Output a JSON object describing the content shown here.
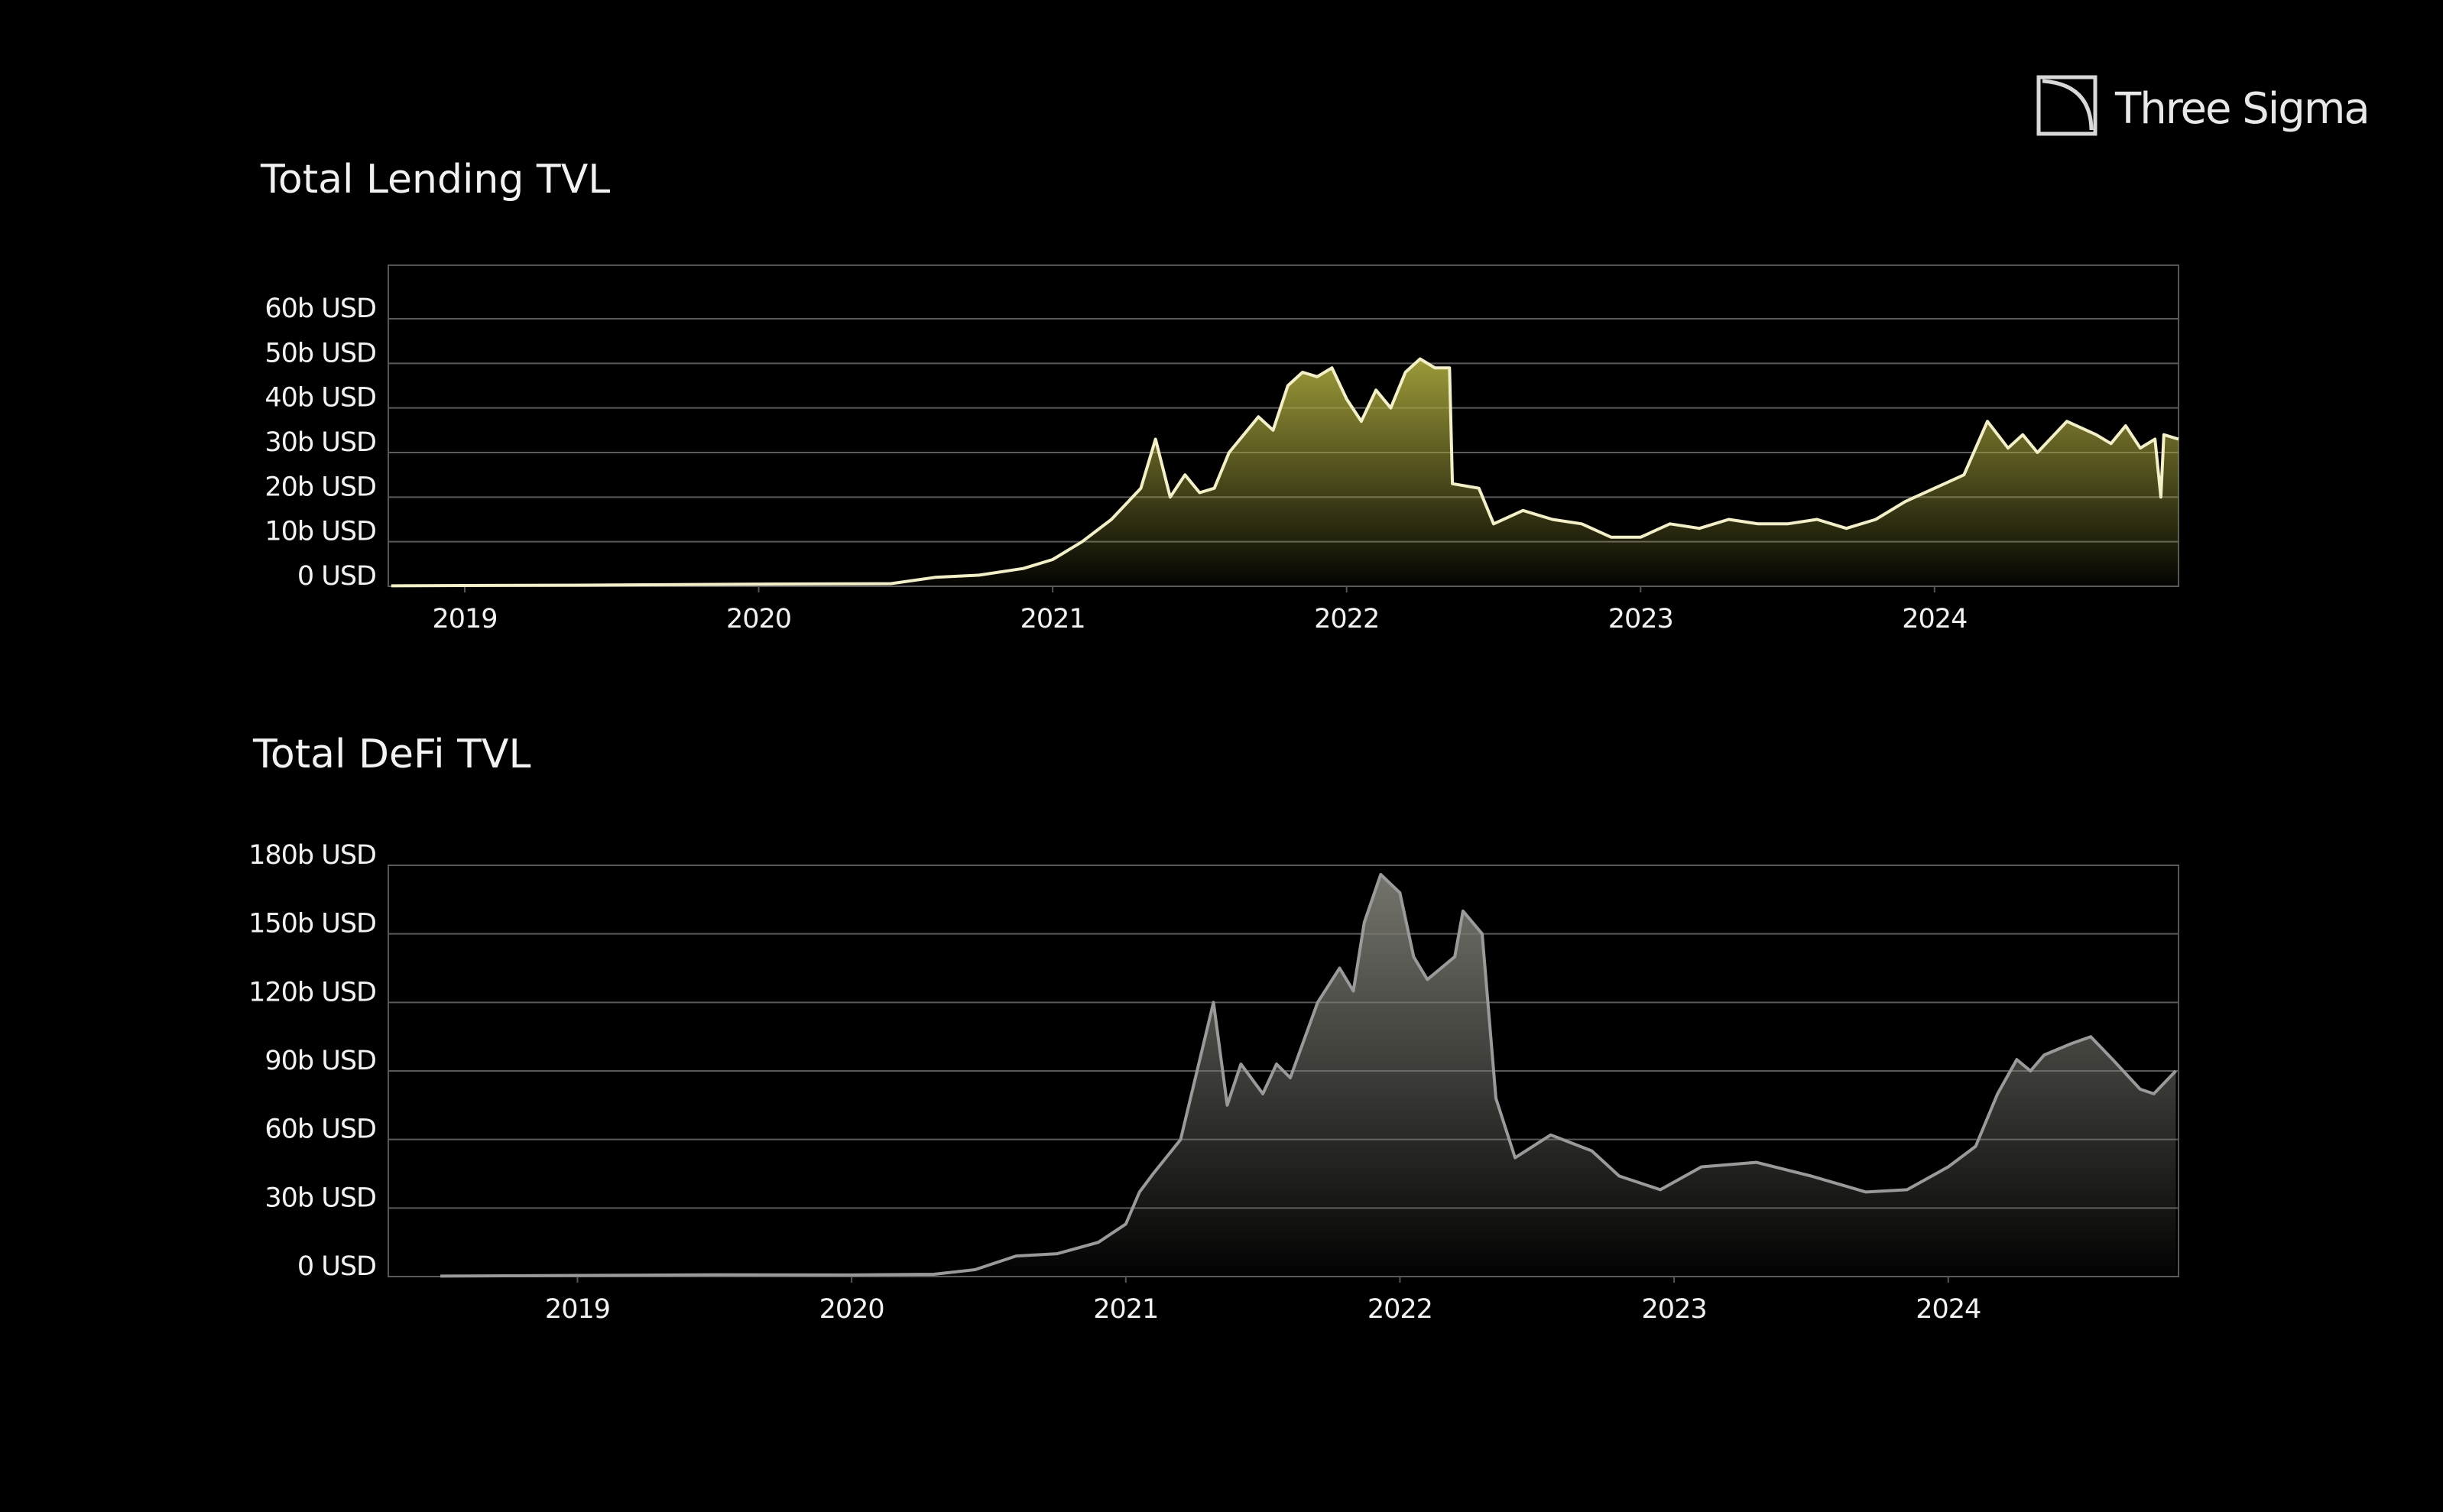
{
  "logo": "Three Sigma",
  "chart_data": [
    {
      "type": "area",
      "title": "Total Lending TVL",
      "color": "#f3efc8",
      "fill_color": "#a4a23c",
      "x": [
        2018.75,
        2019.5,
        2020.0,
        2020.45,
        2020.6,
        2020.75,
        2020.9,
        2021.0,
        2021.1,
        2021.2,
        2021.3,
        2021.35,
        2021.4,
        2021.45,
        2021.5,
        2021.55,
        2021.6,
        2021.7,
        2021.75,
        2021.8,
        2021.85,
        2021.9,
        2021.95,
        2022.0,
        2022.05,
        2022.1,
        2022.15,
        2022.2,
        2022.25,
        2022.3,
        2022.35,
        2022.36,
        2022.45,
        2022.5,
        2022.6,
        2022.7,
        2022.8,
        2022.9,
        2023.0,
        2023.1,
        2023.2,
        2023.3,
        2023.4,
        2023.5,
        2023.6,
        2023.7,
        2023.8,
        2023.9,
        2024.0,
        2024.1,
        2024.18,
        2024.25,
        2024.3,
        2024.35,
        2024.45,
        2024.55,
        2024.6,
        2024.65,
        2024.7,
        2024.75,
        2024.77,
        2024.78,
        2024.83
      ],
      "values": [
        0.1,
        0.3,
        0.5,
        0.6,
        2,
        2.5,
        4,
        6,
        10,
        15,
        22,
        33,
        20,
        25,
        21,
        22,
        30,
        38,
        35,
        45,
        48,
        47,
        49,
        42,
        37,
        44,
        40,
        48,
        51,
        49,
        49,
        23,
        22,
        14,
        17,
        15,
        14,
        11,
        11,
        14,
        13,
        15,
        14,
        14,
        15,
        13,
        15,
        19,
        22,
        25,
        37,
        31,
        34,
        30,
        37,
        34,
        32,
        36,
        31,
        33,
        20,
        34,
        33
      ],
      "xlim": [
        2018.74,
        2024.83
      ],
      "xticks": [
        2019,
        2020,
        2021,
        2022,
        2023,
        2024
      ],
      "ylim": [
        0,
        72
      ],
      "yticks": [
        {
          "value": 0,
          "label": "0 USD"
        },
        {
          "value": 10,
          "label": "10b USD"
        },
        {
          "value": 20,
          "label": "20b USD"
        },
        {
          "value": 30,
          "label": "30b USD"
        },
        {
          "value": 40,
          "label": "40b USD"
        },
        {
          "value": 50,
          "label": "50b USD"
        },
        {
          "value": 60,
          "label": "60b USD"
        }
      ],
      "grid": true
    },
    {
      "type": "area",
      "title": "Total DeFi TVL",
      "color": "#9a9a9a",
      "fill_color": "#7a7a72",
      "x": [
        2018.5,
        2019.0,
        2019.5,
        2020.0,
        2020.3,
        2020.45,
        2020.6,
        2020.75,
        2020.9,
        2021.0,
        2021.05,
        2021.1,
        2021.2,
        2021.28,
        2021.32,
        2021.37,
        2021.42,
        2021.5,
        2021.55,
        2021.6,
        2021.7,
        2021.78,
        2021.83,
        2021.87,
        2021.93,
        2022.0,
        2022.05,
        2022.1,
        2022.2,
        2022.23,
        2022.3,
        2022.35,
        2022.42,
        2022.55,
        2022.7,
        2022.8,
        2022.95,
        2023.1,
        2023.3,
        2023.5,
        2023.7,
        2023.85,
        2024.0,
        2024.1,
        2024.18,
        2024.25,
        2024.3,
        2024.35,
        2024.45,
        2024.52,
        2024.6,
        2024.7,
        2024.75,
        2024.83
      ],
      "values": [
        0.2,
        0.5,
        0.8,
        0.7,
        1,
        3,
        9,
        10,
        15,
        23,
        37,
        45,
        60,
        100,
        120,
        75,
        93,
        80,
        93,
        87,
        120,
        135,
        125,
        155,
        176,
        168,
        140,
        130,
        140,
        160,
        150,
        78,
        52,
        62,
        55,
        44,
        38,
        48,
        50,
        44,
        37,
        38,
        48,
        57,
        80,
        95,
        90,
        97,
        102,
        105,
        95,
        82,
        80,
        90
      ],
      "xlim": [
        2018.31,
        2024.84
      ],
      "xticks": [
        2019,
        2020,
        2021,
        2022,
        2023,
        2024
      ],
      "ylim": [
        0,
        180
      ],
      "yticks": [
        {
          "value": 0,
          "label": "0 USD"
        },
        {
          "value": 30,
          "label": "30b USD"
        },
        {
          "value": 60,
          "label": "60b USD"
        },
        {
          "value": 90,
          "label": "90b USD"
        },
        {
          "value": 120,
          "label": "120b USD"
        },
        {
          "value": 150,
          "label": "150b USD"
        },
        {
          "value": 180,
          "label": "180b USD"
        }
      ],
      "grid": true
    }
  ]
}
